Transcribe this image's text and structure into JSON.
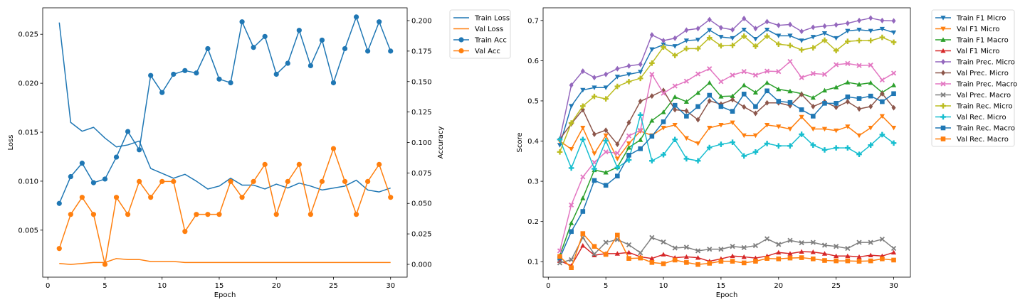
{
  "chart_data": [
    {
      "type": "line",
      "xlabel": "Epoch",
      "ylabel": "Loss",
      "y2label": "Accuracy",
      "xlim": [
        -0.45,
        31.45
      ],
      "ylim": [
        0.0002,
        0.0277
      ],
      "y2lim": [
        -0.0105,
        0.2105
      ],
      "xticks": [
        0,
        5,
        10,
        15,
        20,
        25,
        30
      ],
      "yticks": [
        0.005,
        0.01,
        0.015,
        0.02,
        0.025
      ],
      "ytick_labels": [
        "0.005",
        "0.010",
        "0.015",
        "0.020",
        "0.025"
      ],
      "y2ticks": [
        0.0,
        0.025,
        0.05,
        0.075,
        0.1,
        0.125,
        0.15,
        0.175,
        0.2
      ],
      "y2tick_labels": [
        "0.000",
        "0.025",
        "0.050",
        "0.075",
        "0.100",
        "0.125",
        "0.150",
        "0.175",
        "0.200"
      ],
      "legend_position": "outside-top-right",
      "x": [
        1,
        2,
        3,
        4,
        5,
        6,
        7,
        8,
        9,
        10,
        11,
        12,
        13,
        14,
        15,
        16,
        17,
        18,
        19,
        20,
        21,
        22,
        23,
        24,
        25,
        26,
        27,
        28,
        29,
        30
      ],
      "series": [
        {
          "name": "Train Loss",
          "color": "#1f77b4",
          "marker": "none",
          "axis": "left",
          "values": [
            0.0262,
            0.016,
            0.0151,
            0.0155,
            0.0144,
            0.0135,
            0.0137,
            0.0141,
            0.0113,
            0.0108,
            0.0103,
            0.0107,
            0.01,
            0.0092,
            0.0095,
            0.0103,
            0.0096,
            0.0096,
            0.0092,
            0.0097,
            0.0093,
            0.0098,
            0.0095,
            0.0091,
            0.0093,
            0.0095,
            0.0101,
            0.0091,
            0.0089,
            0.0093
          ]
        },
        {
          "name": "Val Loss",
          "color": "#ff7f0e",
          "marker": "none",
          "axis": "left",
          "values": [
            0.0016,
            0.0015,
            0.0016,
            0.0017,
            0.0017,
            0.0021,
            0.002,
            0.002,
            0.0018,
            0.0018,
            0.0018,
            0.0017,
            0.0017,
            0.0017,
            0.0017,
            0.0017,
            0.0017,
            0.0017,
            0.0017,
            0.0017,
            0.0017,
            0.0017,
            0.0017,
            0.0017,
            0.0017,
            0.0017,
            0.0017,
            0.0017,
            0.0017,
            0.0017
          ]
        },
        {
          "name": "Train Acc",
          "color": "#1f77b4",
          "marker": "circle",
          "axis": "right",
          "values": [
            0.05,
            0.072,
            0.083,
            0.067,
            0.07,
            0.088,
            0.109,
            0.094,
            0.155,
            0.141,
            0.156,
            0.159,
            0.157,
            0.177,
            0.152,
            0.149,
            0.199,
            0.178,
            0.187,
            0.156,
            0.165,
            0.192,
            0.163,
            0.184,
            0.149,
            0.177,
            0.203,
            0.175,
            0.199,
            0.175
          ]
        },
        {
          "name": "Val Acc",
          "color": "#ff7f0e",
          "marker": "circle",
          "axis": "right",
          "values": [
            0.013,
            0.041,
            0.055,
            0.041,
            0.0,
            0.055,
            0.041,
            0.068,
            0.055,
            0.068,
            0.068,
            0.027,
            0.041,
            0.041,
            0.041,
            0.068,
            0.055,
            0.068,
            0.082,
            0.041,
            0.068,
            0.082,
            0.041,
            0.068,
            0.095,
            0.068,
            0.041,
            0.068,
            0.082,
            0.055
          ]
        }
      ]
    },
    {
      "type": "line",
      "xlabel": "Epoch",
      "ylabel": "Score",
      "xlim": [
        -0.45,
        31.45
      ],
      "ylim": [
        0.0615,
        0.7315
      ],
      "xticks": [
        0,
        5,
        10,
        15,
        20,
        25,
        30
      ],
      "yticks": [
        0.1,
        0.2,
        0.3,
        0.4,
        0.5,
        0.6,
        0.7
      ],
      "ytick_labels": [
        "0.1",
        "0.2",
        "0.3",
        "0.4",
        "0.5",
        "0.6",
        "0.7"
      ],
      "legend_position": "outside-top-right",
      "x": [
        1,
        2,
        3,
        4,
        5,
        6,
        7,
        8,
        9,
        10,
        11,
        12,
        13,
        14,
        15,
        16,
        17,
        18,
        19,
        20,
        21,
        22,
        23,
        24,
        25,
        26,
        27,
        28,
        29,
        30
      ],
      "series": [
        {
          "name": "Train F1 Micro",
          "color": "#1f77b4",
          "marker": "triangle-down",
          "values": [
            0.39,
            0.487,
            0.527,
            0.533,
            0.533,
            0.56,
            0.566,
            0.572,
            0.628,
            0.64,
            0.636,
            0.65,
            0.652,
            0.676,
            0.659,
            0.656,
            0.677,
            0.654,
            0.677,
            0.662,
            0.662,
            0.65,
            0.659,
            0.668,
            0.656,
            0.674,
            0.677,
            0.674,
            0.679,
            0.67
          ]
        },
        {
          "name": "Val F1 Micro",
          "color": "#ff7f0e",
          "marker": "triangle-down",
          "values": [
            0.4,
            0.38,
            0.433,
            0.369,
            0.414,
            0.356,
            0.394,
            0.425,
            0.414,
            0.433,
            0.44,
            0.407,
            0.394,
            0.433,
            0.44,
            0.446,
            0.414,
            0.414,
            0.44,
            0.436,
            0.43,
            0.46,
            0.43,
            0.43,
            0.426,
            0.436,
            0.414,
            0.433,
            0.462,
            0.433
          ]
        },
        {
          "name": "Train F1 Macro",
          "color": "#2ca02c",
          "marker": "triangle-up",
          "values": [
            0.115,
            0.196,
            0.258,
            0.328,
            0.322,
            0.335,
            0.384,
            0.403,
            0.451,
            0.472,
            0.51,
            0.498,
            0.52,
            0.545,
            0.511,
            0.512,
            0.539,
            0.521,
            0.545,
            0.529,
            0.524,
            0.518,
            0.508,
            0.526,
            0.534,
            0.546,
            0.541,
            0.545,
            0.521,
            0.539
          ]
        },
        {
          "name": "Val F1 Micro",
          "color": "#d62728",
          "marker": "triangle-up",
          "values": [
            0.102,
            0.09,
            0.14,
            0.116,
            0.12,
            0.12,
            0.123,
            0.112,
            0.108,
            0.118,
            0.11,
            0.112,
            0.11,
            0.101,
            0.107,
            0.114,
            0.112,
            0.109,
            0.114,
            0.123,
            0.12,
            0.125,
            0.124,
            0.12,
            0.114,
            0.114,
            0.112,
            0.116,
            0.114,
            0.123
          ]
        },
        {
          "name": "Train Prec. Micro",
          "color": "#9467bd",
          "marker": "diamond",
          "values": [
            0.405,
            0.539,
            0.574,
            0.558,
            0.566,
            0.58,
            0.587,
            0.591,
            0.664,
            0.65,
            0.656,
            0.676,
            0.68,
            0.702,
            0.682,
            0.677,
            0.705,
            0.68,
            0.697,
            0.688,
            0.69,
            0.673,
            0.683,
            0.686,
            0.689,
            0.693,
            0.7,
            0.706,
            0.7,
            0.699
          ]
        },
        {
          "name": "Val Prec. Micro",
          "color": "#8c564b",
          "marker": "diamond",
          "values": [
            0.405,
            0.443,
            0.478,
            0.417,
            0.427,
            0.392,
            0.446,
            0.499,
            0.512,
            0.526,
            0.478,
            0.475,
            0.453,
            0.5,
            0.492,
            0.503,
            0.485,
            0.469,
            0.495,
            0.495,
            0.488,
            0.516,
            0.486,
            0.498,
            0.484,
            0.498,
            0.48,
            0.486,
            0.518,
            0.483
          ]
        },
        {
          "name": "Train Prec. Macro",
          "color": "#e377c2",
          "marker": "x",
          "values": [
            0.127,
            0.241,
            0.311,
            0.347,
            0.373,
            0.37,
            0.413,
            0.427,
            0.566,
            0.519,
            0.537,
            0.549,
            0.567,
            0.58,
            0.548,
            0.564,
            0.573,
            0.564,
            0.574,
            0.573,
            0.598,
            0.558,
            0.568,
            0.566,
            0.59,
            0.593,
            0.588,
            0.589,
            0.552,
            0.569
          ]
        },
        {
          "name": "Val Prec. Macro",
          "color": "#7f7f7f",
          "marker": "x",
          "values": [
            0.097,
            0.105,
            0.16,
            0.119,
            0.148,
            0.155,
            0.142,
            0.122,
            0.16,
            0.149,
            0.134,
            0.136,
            0.127,
            0.131,
            0.131,
            0.138,
            0.135,
            0.14,
            0.157,
            0.143,
            0.153,
            0.147,
            0.148,
            0.141,
            0.138,
            0.133,
            0.148,
            0.148,
            0.156,
            0.133
          ]
        },
        {
          "name": "Train Rec. Micro",
          "color": "#bcbd22",
          "marker": "plus",
          "values": [
            0.373,
            0.445,
            0.487,
            0.511,
            0.505,
            0.536,
            0.548,
            0.556,
            0.594,
            0.634,
            0.613,
            0.63,
            0.63,
            0.657,
            0.637,
            0.638,
            0.661,
            0.636,
            0.661,
            0.641,
            0.638,
            0.627,
            0.632,
            0.651,
            0.625,
            0.648,
            0.65,
            0.65,
            0.658,
            0.646
          ]
        },
        {
          "name": "Val Rec. Micro",
          "color": "#17becf",
          "marker": "plus",
          "values": [
            0.404,
            0.333,
            0.404,
            0.331,
            0.401,
            0.334,
            0.353,
            0.465,
            0.351,
            0.366,
            0.404,
            0.356,
            0.351,
            0.384,
            0.392,
            0.397,
            0.363,
            0.373,
            0.394,
            0.388,
            0.388,
            0.417,
            0.39,
            0.378,
            0.383,
            0.383,
            0.367,
            0.39,
            0.416,
            0.395
          ]
        },
        {
          "name": "Train Rec. Macro",
          "color": "#1f77b4",
          "marker": "square",
          "values": [
            0.109,
            0.175,
            0.225,
            0.302,
            0.29,
            0.313,
            0.365,
            0.381,
            0.412,
            0.448,
            0.489,
            0.462,
            0.486,
            0.514,
            0.486,
            0.474,
            0.517,
            0.486,
            0.525,
            0.499,
            0.496,
            0.478,
            0.462,
            0.494,
            0.494,
            0.51,
            0.506,
            0.512,
            0.498,
            0.518
          ]
        },
        {
          "name": "Val Rec. Macro",
          "color": "#ff7f0e",
          "marker": "square",
          "values": [
            0.113,
            0.085,
            0.17,
            0.138,
            0.118,
            0.166,
            0.108,
            0.109,
            0.098,
            0.095,
            0.104,
            0.098,
            0.093,
            0.096,
            0.101,
            0.101,
            0.097,
            0.101,
            0.108,
            0.107,
            0.109,
            0.11,
            0.107,
            0.103,
            0.102,
            0.102,
            0.101,
            0.102,
            0.107,
            0.104
          ]
        }
      ]
    }
  ]
}
